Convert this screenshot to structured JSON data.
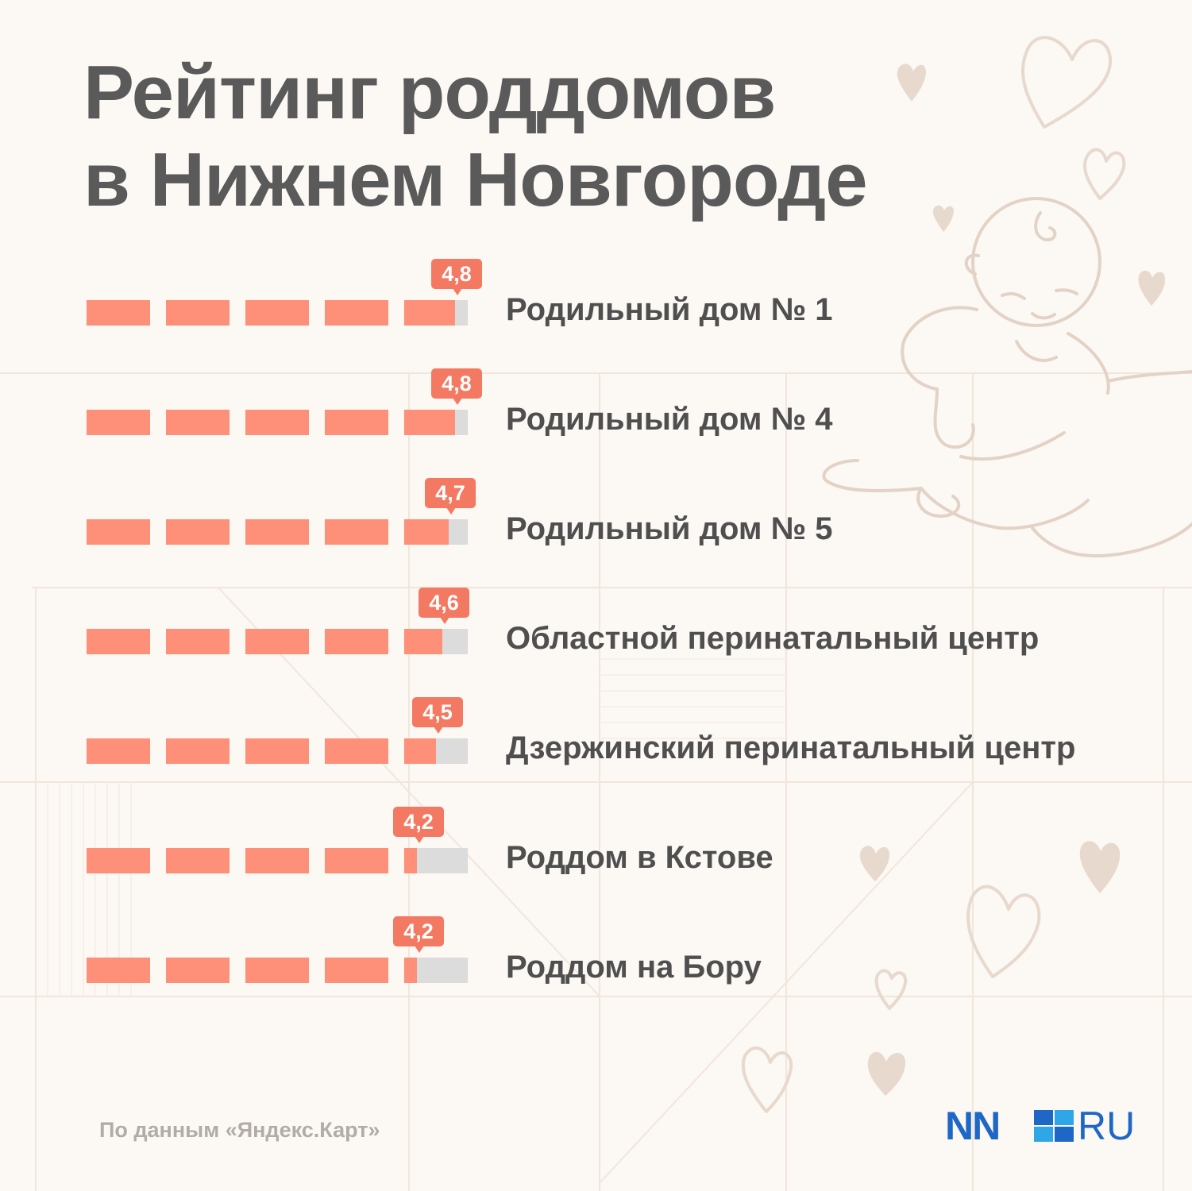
{
  "title_line1": "Рейтинг роддомов",
  "title_line2": "в Нижнем Новгороде",
  "chart_data": {
    "type": "bar",
    "max": 5,
    "segments": 5,
    "categories": [
      "Родильный дом № 1",
      "Родильный дом № 4",
      "Родильный дом № 5",
      "Областной перинатальный центр",
      "Дзержинский перинатальный центр",
      "Роддом в Кстове",
      "Роддом на Бору"
    ],
    "values": [
      4.8,
      4.8,
      4.7,
      4.6,
      4.5,
      4.2,
      4.2
    ],
    "value_labels": [
      "4,8",
      "4,8",
      "4,7",
      "4,6",
      "4,5",
      "4,2",
      "4,2"
    ]
  },
  "source": "По данным «Яндекс.Карт»",
  "logo": {
    "left": "NN",
    "right": "RU"
  },
  "colors": {
    "background": "#fcf8f3",
    "bar_fill": "#fe8f78",
    "bar_empty": "#dcdcdc",
    "badge": "#f47962",
    "title": "#5a5a5a",
    "label": "#4f4f4f",
    "logo": "#1f67c6"
  },
  "decoration_icons": [
    "heart-icon",
    "baby-in-hand-illustration"
  ]
}
